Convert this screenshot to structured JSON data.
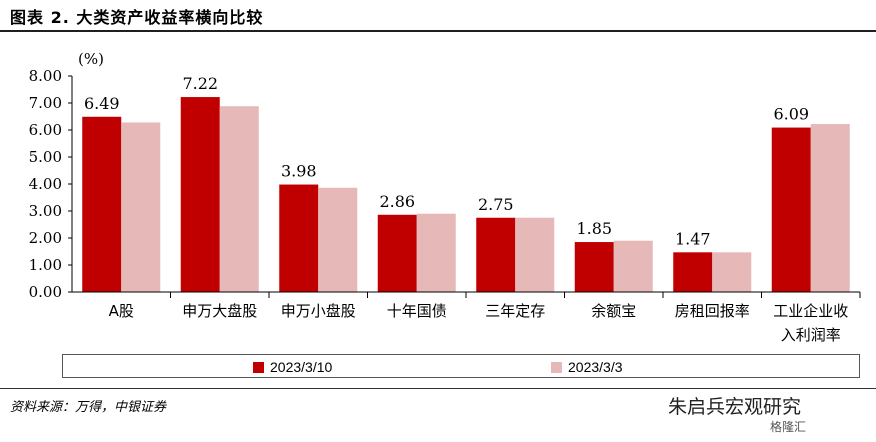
{
  "header": {
    "title": "图表 2. 大类资产收益率横向比较"
  },
  "footer": {
    "source": "资料来源：万得，中银证券",
    "watermark": "朱启兵宏观研究",
    "watermark_sub": "格隆汇"
  },
  "colors": {
    "series1": "#c00000",
    "series2": "#e6b8b7"
  },
  "chart_data": {
    "type": "bar",
    "ylabel": "(%)",
    "ylim": [
      0,
      8
    ],
    "yticks": [
      "0.00",
      "1.00",
      "2.00",
      "3.00",
      "4.00",
      "5.00",
      "6.00",
      "7.00",
      "8.00"
    ],
    "grid": false,
    "legend": "bottom",
    "categories": [
      [
        "A股"
      ],
      [
        "申万大盘股"
      ],
      [
        "申万小盘股"
      ],
      [
        "十年国债"
      ],
      [
        "三年定存"
      ],
      [
        "余额宝"
      ],
      [
        "房租回报率"
      ],
      [
        "工业企业收",
        "入利润率"
      ]
    ],
    "series": [
      {
        "name": "2023/3/10",
        "values": [
          6.49,
          7.22,
          3.98,
          2.86,
          2.75,
          1.85,
          1.47,
          6.09
        ],
        "labels": [
          "6.49",
          "7.22",
          "3.98",
          "2.86",
          "2.75",
          "1.85",
          "1.47",
          "6.09"
        ]
      },
      {
        "name": "2023/3/3",
        "values": [
          6.28,
          6.88,
          3.86,
          2.9,
          2.75,
          1.9,
          1.47,
          6.22
        ]
      }
    ]
  }
}
